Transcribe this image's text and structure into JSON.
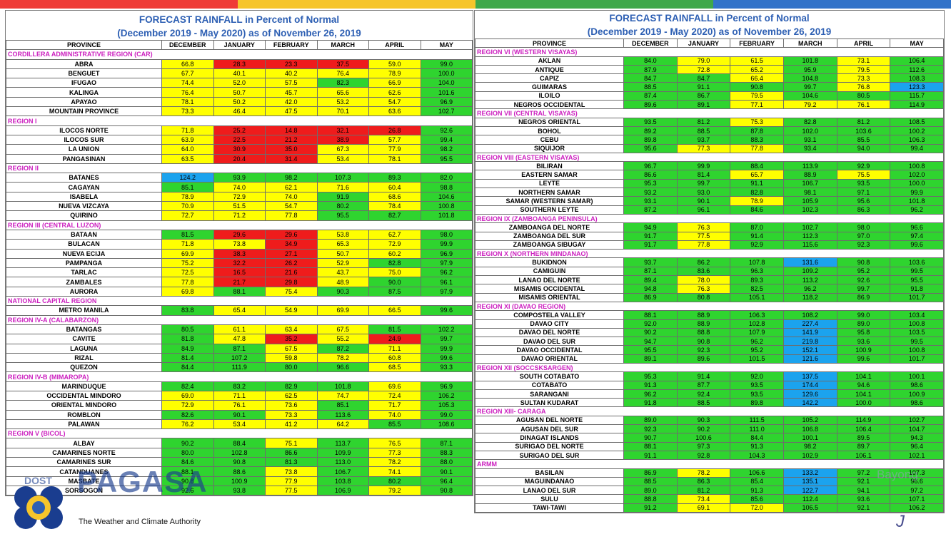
{
  "stripes": [
    "#ef3b36",
    "#f6c52b",
    "#3fa84a",
    "#3273c9"
  ],
  "title_line1": "FORECAST RAINFALL  in Percent of Normal",
  "title_line2": "(December 2019 - May 2020) as of November 26, 2019",
  "headers": [
    "PROVINCE",
    "DECEMBER",
    "JANUARY",
    "FEBRUARY",
    "MARCH",
    "APRIL",
    "MAY"
  ],
  "logo": {
    "dost": "DOST",
    "brand": "PAGASA",
    "tagline": "The Weather and Climate Authority",
    "partial": "Bayong"
  },
  "legend_colors": {
    "g": "#2fd42f",
    "y": "#ffff00",
    "r": "#ef1c1c",
    "b": "#1ba3ee"
  },
  "left_rows": [
    {
      "region": "CORDILLERA ADMINISTRATIVE REGION (CAR)"
    },
    {
      "name": "ABRA",
      "v": [
        "66.8",
        "28.3",
        "23.3",
        "37.5",
        "59.0",
        "99.0"
      ],
      "c": "yrrryg"
    },
    {
      "name": "BENGUET",
      "v": [
        "67.7",
        "40.1",
        "40.2",
        "76.4",
        "78.9",
        "100.0"
      ],
      "c": "yyyyyg"
    },
    {
      "name": "IFUGAO",
      "v": [
        "74.4",
        "52.0",
        "57.5",
        "82.3",
        "66.9",
        "104.0"
      ],
      "c": "yyygyg"
    },
    {
      "name": "KALINGA",
      "v": [
        "76.4",
        "50.7",
        "45.7",
        "65.6",
        "62.6",
        "101.6"
      ],
      "c": "yyyyyg"
    },
    {
      "name": "APAYAO",
      "v": [
        "78.1",
        "50.2",
        "42.0",
        "53.2",
        "54.7",
        "96.9"
      ],
      "c": "yyyyyg"
    },
    {
      "name": "MOUNTAIN PROVINCE",
      "v": [
        "73.3",
        "46.4",
        "47.5",
        "70.1",
        "63.6",
        "102.7"
      ],
      "c": "yyyyyg"
    },
    {
      "region": "REGION I"
    },
    {
      "name": "ILOCOS NORTE",
      "v": [
        "71.8",
        "25.2",
        "14.8",
        "32.1",
        "26.8",
        "92.6"
      ],
      "c": "yrrrrg"
    },
    {
      "name": "ILOCOS SUR",
      "v": [
        "63.9",
        "22.5",
        "21.2",
        "38.9",
        "57.7",
        "99.4"
      ],
      "c": "yrrryg"
    },
    {
      "name": "LA UNION",
      "v": [
        "64.0",
        "30.9",
        "35.0",
        "67.3",
        "77.9",
        "98.2"
      ],
      "c": "yrryyg"
    },
    {
      "name": "PANGASINAN",
      "v": [
        "63.5",
        "20.4",
        "31.4",
        "53.4",
        "78.1",
        "95.5"
      ],
      "c": "yrryyg"
    },
    {
      "region": "REGION II"
    },
    {
      "name": "BATANES",
      "v": [
        "124.2",
        "93.9",
        "98.2",
        "107.3",
        "89.3",
        "82.0"
      ],
      "c": "bggggg"
    },
    {
      "name": "CAGAYAN",
      "v": [
        "85.1",
        "74.0",
        "62.1",
        "71.6",
        "60.4",
        "98.8"
      ],
      "c": "gyyyyg"
    },
    {
      "name": "ISABELA",
      "v": [
        "78.9",
        "72.9",
        "74.0",
        "91.9",
        "68.6",
        "104.6"
      ],
      "c": "yyygyg"
    },
    {
      "name": "NUEVA VIZCAYA",
      "v": [
        "70.9",
        "51.5",
        "54.7",
        "80.2",
        "78.4",
        "100.8"
      ],
      "c": "yyygyg"
    },
    {
      "name": "QUIRINO",
      "v": [
        "72.7",
        "71.2",
        "77.8",
        "95.5",
        "82.7",
        "101.8"
      ],
      "c": "yyyggg"
    },
    {
      "region": "REGION III (CENTRAL LUZON)"
    },
    {
      "name": "BATAAN",
      "v": [
        "81.5",
        "29.6",
        "29.6",
        "53.8",
        "62.7",
        "98.0"
      ],
      "c": "grryyg"
    },
    {
      "name": "BULACAN",
      "v": [
        "71.8",
        "73.8",
        "34.9",
        "65.3",
        "72.9",
        "99.9"
      ],
      "c": "yyryyg"
    },
    {
      "name": "NUEVA ECIJA",
      "v": [
        "69.9",
        "38.3",
        "27.1",
        "50.7",
        "60.2",
        "96.9"
      ],
      "c": "yrryyg"
    },
    {
      "name": "PAMPANGA",
      "v": [
        "75.2",
        "32.2",
        "26.2",
        "52.9",
        "82.8",
        "97.9"
      ],
      "c": "yrrygg"
    },
    {
      "name": "TARLAC",
      "v": [
        "72.5",
        "16.5",
        "21.6",
        "43.7",
        "75.0",
        "96.2"
      ],
      "c": "yrryyg"
    },
    {
      "name": "ZAMBALES",
      "v": [
        "77.8",
        "21.7",
        "29.8",
        "48.9",
        "90.0",
        "96.1"
      ],
      "c": "yrrygg"
    },
    {
      "name": "AURORA",
      "v": [
        "69.8",
        "88.1",
        "75.4",
        "90.3",
        "87.5",
        "97.9"
      ],
      "c": "ygyggg"
    },
    {
      "region": "NATIONAL CAPITAL REGION"
    },
    {
      "name": "METRO MANILA",
      "v": [
        "83.8",
        "65.4",
        "54.9",
        "69.9",
        "66.5",
        "99.6"
      ],
      "c": "gyyyyg"
    },
    {
      "region": "REGION IV-A  (CALABARZON)"
    },
    {
      "name": "BATANGAS",
      "v": [
        "80.5",
        "61.1",
        "63.4",
        "67.5",
        "81.5",
        "102.2"
      ],
      "c": "gyyygg"
    },
    {
      "name": "CAVITE",
      "v": [
        "81.8",
        "47.8",
        "35.2",
        "55.2",
        "24.9",
        "99.7"
      ],
      "c": "gyryrg"
    },
    {
      "name": "LAGUNA",
      "v": [
        "84.9",
        "87.1",
        "67.5",
        "87.2",
        "71.1",
        "99.9"
      ],
      "c": "ggygyg"
    },
    {
      "name": "RIZAL",
      "v": [
        "81.4",
        "107.2",
        "59.8",
        "78.2",
        "60.8",
        "99.6"
      ],
      "c": "ggyyyg"
    },
    {
      "name": "QUEZON",
      "v": [
        "84.4",
        "111.9",
        "80.0",
        "96.6",
        "68.5",
        "93.3"
      ],
      "c": "gggg yg"
    },
    {
      "region": "REGION IV-B  (MIMAROPA)"
    },
    {
      "name": "MARINDUQUE",
      "v": [
        "82.4",
        "83.2",
        "82.9",
        "101.8",
        "69.6",
        "96.9"
      ],
      "c": "ggggyg"
    },
    {
      "name": "OCCIDENTAL MINDORO",
      "v": [
        "69.0",
        "71.1",
        "62.5",
        "74.7",
        "72.4",
        "106.2"
      ],
      "c": "yyyyyg"
    },
    {
      "name": "ORIENTAL MINDORO",
      "v": [
        "72.9",
        "76.1",
        "73.6",
        "85.1",
        "71.7",
        "105.3"
      ],
      "c": "yyygyg"
    },
    {
      "name": "ROMBLON",
      "v": [
        "82.6",
        "90.1",
        "73.3",
        "113.6",
        "74.0",
        "99.0"
      ],
      "c": "ggygyg"
    },
    {
      "name": "PALAWAN",
      "v": [
        "76.2",
        "53.4",
        "41.2",
        "64.2",
        "85.5",
        "108.6"
      ],
      "c": "yyyygg"
    },
    {
      "region": "REGION V (BICOL)"
    },
    {
      "name": "ALBAY",
      "v": [
        "90.2",
        "88.4",
        "75.1",
        "113.7",
        "76.5",
        "87.1"
      ],
      "c": "ggygyg"
    },
    {
      "name": "CAMARINES NORTE",
      "v": [
        "80.0",
        "102.8",
        "86.6",
        "109.9",
        "77.3",
        "88.3"
      ],
      "c": "ggggyg"
    },
    {
      "name": "CAMARINES SUR",
      "v": [
        "84.6",
        "90.8",
        "81.3",
        "113.0",
        "78.2",
        "88.0"
      ],
      "c": "ggggyg"
    },
    {
      "name": "CATANDUANES",
      "v": [
        "88.1",
        "88.6",
        "73.8",
        "106.7",
        "74.1",
        "90.1"
      ],
      "c": "ggygyg"
    },
    {
      "name": "MASBATE",
      "v": [
        "90.8",
        "100.9",
        "77.9",
        "103.8",
        "80.2",
        "96.4"
      ],
      "c": "ggyggg"
    },
    {
      "name": "SORSOGON",
      "v": [
        "92.6",
        "93.8",
        "77.5",
        "106.9",
        "79.2",
        "90.8"
      ],
      "c": "ggygyg"
    }
  ],
  "right_rows": [
    {
      "region": "REGION VI (WESTERN VISAYAS)"
    },
    {
      "name": "AKLAN",
      "v": [
        "84.0",
        "79.0",
        "61.5",
        "101.8",
        "73.1",
        "106.4"
      ],
      "c": "gyygyg"
    },
    {
      "name": "ANTIQUE",
      "v": [
        "87.9",
        "72.8",
        "65.2",
        "95.9",
        "79.5",
        "112.6"
      ],
      "c": "gyygyg"
    },
    {
      "name": "CAPIZ",
      "v": [
        "84.7",
        "84.7",
        "66.4",
        "104.8",
        "73.3",
        "108.3"
      ],
      "c": "ggygyg"
    },
    {
      "name": "GUIMARAS",
      "v": [
        "88.5",
        "91.1",
        "90.8",
        "99.7",
        "76.8",
        "123.3"
      ],
      "c": "gggg yb"
    },
    {
      "name": "ILOILO",
      "v": [
        "87.4",
        "86.7",
        "79.5",
        "104.6",
        "80.5",
        "115.7"
      ],
      "c": "ggyggg"
    },
    {
      "name": "NEGROS OCCIDENTAL",
      "v": [
        "89.6",
        "89.1",
        "77.1",
        "79.2",
        "76.1",
        "114.9"
      ],
      "c": "ggyyyg"
    },
    {
      "region": "REGION VII (CENTRAL VISAYAS)"
    },
    {
      "name": "NEGROS ORIENTAL",
      "v": [
        "93.5",
        "81.2",
        "75.3",
        "82.8",
        "81.2",
        "108.5"
      ],
      "c": "ggyggg"
    },
    {
      "name": "BOHOL",
      "v": [
        "89.2",
        "88.5",
        "87.8",
        "102.0",
        "103.6",
        "100.2"
      ],
      "c": "gggggg"
    },
    {
      "name": "CEBU",
      "v": [
        "89.8",
        "93.7",
        "88.3",
        "93.1",
        "85.5",
        "106.3"
      ],
      "c": "gggggg"
    },
    {
      "name": "SIQUIJOR",
      "v": [
        "95.6",
        "77.3",
        "77.8",
        "93.4",
        "94.0",
        "99.4"
      ],
      "c": "gyyggg"
    },
    {
      "region": "REGION VIII (EASTERN  VISAYAS)"
    },
    {
      "name": "BILIRAN",
      "v": [
        "96.7",
        "99.9",
        "88.4",
        "113.9",
        "92.9",
        "100.8"
      ],
      "c": "gggggg"
    },
    {
      "name": "EASTERN SAMAR",
      "v": [
        "86.6",
        "81.4",
        "65.7",
        "88.9",
        "75.5",
        "102.0"
      ],
      "c": "ggygyg"
    },
    {
      "name": "LEYTE",
      "v": [
        "95.3",
        "99.7",
        "91.1",
        "106.7",
        "93.5",
        "100.0"
      ],
      "c": "gggggg"
    },
    {
      "name": "NORTHERN SAMAR",
      "v": [
        "93.2",
        "93.0",
        "82.8",
        "98.1",
        "97.1",
        "99.9"
      ],
      "c": "gggggg"
    },
    {
      "name": "SAMAR (WESTERN SAMAR)",
      "v": [
        "93.1",
        "90.1",
        "78.9",
        "105.9",
        "95.6",
        "101.8"
      ],
      "c": "ggyggg"
    },
    {
      "name": "SOUTHERN LEYTE",
      "v": [
        "87.2",
        "96.1",
        "84.6",
        "102.3",
        "86.3",
        "96.2"
      ],
      "c": "gggggg"
    },
    {
      "region": "REGION IX (ZAMBOANGA PENINSULA)"
    },
    {
      "name": "ZAMBOANGA DEL NORTE",
      "v": [
        "94.9",
        "76.3",
        "87.0",
        "102.7",
        "98.0",
        "96.6"
      ],
      "c": "gyg ggg"
    },
    {
      "name": "ZAMBOANGA DEL SUR",
      "v": [
        "91.7",
        "77.5",
        "91.4",
        "112.3",
        "97.0",
        "97.4"
      ],
      "c": "gyg ggg"
    },
    {
      "name": "ZAMBOANGA SIBUGAY",
      "v": [
        "91.7",
        "77.8",
        "92.9",
        "115.6",
        "92.3",
        "99.6"
      ],
      "c": "gyg ggg"
    },
    {
      "region": "REGION X (NORTHERN MINDANAO)"
    },
    {
      "name": "BUKIDNON",
      "v": [
        "93.7",
        "86.2",
        "107.8",
        "131.6",
        "90.8",
        "103.6"
      ],
      "c": "gggbgg"
    },
    {
      "name": "CAMIGUIN",
      "v": [
        "87.1",
        "83.6",
        "96.3",
        "109.2",
        "95.2",
        "99.5"
      ],
      "c": "gggggg"
    },
    {
      "name": "LANAO DEL NORTE",
      "v": [
        "89.4",
        "78.0",
        "89.3",
        "113.2",
        "92.6",
        "95.5"
      ],
      "c": "gygggg"
    },
    {
      "name": "MISAMIS OCCIDENTAL",
      "v": [
        "94.8",
        "76.3",
        "82.5",
        "96.2",
        "99.7",
        "91.8"
      ],
      "c": "gygggg"
    },
    {
      "name": "MISAMIS ORIENTAL",
      "v": [
        "86.9",
        "80.8",
        "105.1",
        "118.2",
        "86.9",
        "101.7"
      ],
      "c": "gggggg"
    },
    {
      "region": "REGION XI (DAVAO REGION)"
    },
    {
      "name": "COMPOSTELA VALLEY",
      "v": [
        "88.1",
        "88.9",
        "106.3",
        "108.2",
        "99.0",
        "103.4"
      ],
      "c": "gggggg"
    },
    {
      "name": "DAVAO CITY",
      "v": [
        "92.0",
        "88.9",
        "102.8",
        "227.4",
        "89.0",
        "100.8"
      ],
      "c": "gggbgg"
    },
    {
      "name": "DAVAO DEL NORTE",
      "v": [
        "90.2",
        "88.8",
        "107.9",
        "141.9",
        "95.8",
        "103.5"
      ],
      "c": "gggbgg"
    },
    {
      "name": "DAVAO DEL SUR",
      "v": [
        "94.7",
        "90.8",
        "96.2",
        "219.8",
        "93.6",
        "99.5"
      ],
      "c": "gggbgg"
    },
    {
      "name": "DAVAO OCCIDENTAL",
      "v": [
        "95.5",
        "92.3",
        "95.2",
        "152.1",
        "100.9",
        "100.8"
      ],
      "c": "gggbgg"
    },
    {
      "name": "DAVAO ORIENTAL",
      "v": [
        "89.1",
        "89.6",
        "101.5",
        "121.6",
        "99.6",
        "101.7"
      ],
      "c": "gggbgg"
    },
    {
      "region": "REGION XII (SOCCSKSARGEN)"
    },
    {
      "name": "SOUTH COTABATO",
      "v": [
        "95.3",
        "91.4",
        "92.0",
        "137.5",
        "104.1",
        "100.1"
      ],
      "c": "gggbgg"
    },
    {
      "name": "COTABATO",
      "v": [
        "91.3",
        "87.7",
        "93.5",
        "174.4",
        "94.6",
        "98.6"
      ],
      "c": "gggbgg"
    },
    {
      "name": "SARANGANI",
      "v": [
        "96.2",
        "92.4",
        "93.5",
        "129.6",
        "104.1",
        "100.9"
      ],
      "c": "gggbgg"
    },
    {
      "name": "SULTAN KUDARAT",
      "v": [
        "91.8",
        "88.5",
        "89.8",
        "142.2",
        "100.0",
        "98.6"
      ],
      "c": "gggbgg"
    },
    {
      "region": "REGION XIII- CARAGA"
    },
    {
      "name": "AGUSAN DEL NORTE",
      "v": [
        "89.0",
        "90.3",
        "111.5",
        "105.2",
        "114.9",
        "102.7"
      ],
      "c": "gggggg"
    },
    {
      "name": "AGUSAN DEL SUR",
      "v": [
        "92.3",
        "90.2",
        "111.0",
        "106.8",
        "106.4",
        "104.7"
      ],
      "c": "gggggg"
    },
    {
      "name": "DINAGAT ISLANDS",
      "v": [
        "90.7",
        "100.6",
        "84.4",
        "100.1",
        "89.5",
        "94.3"
      ],
      "c": "gggggg"
    },
    {
      "name": "SURIGAO DEL NORTE",
      "v": [
        "88.1",
        "97.3",
        "91.3",
        "98.2",
        "89.7",
        "96.4"
      ],
      "c": "gggggg"
    },
    {
      "name": "SURIGAO DEL SUR",
      "v": [
        "91.1",
        "92.8",
        "104.3",
        "102.9",
        "106.1",
        "102.1"
      ],
      "c": "gggggg"
    },
    {
      "region": "ARMM"
    },
    {
      "name": "BASILAN",
      "v": [
        "86.9",
        "78.2",
        "106.6",
        "133.2",
        "97.2",
        "107.3"
      ],
      "c": "gygbgg"
    },
    {
      "name": "MAGUINDANAO",
      "v": [
        "88.5",
        "86.3",
        "85.4",
        "135.1",
        "92.1",
        "96.6"
      ],
      "c": "gggbgg"
    },
    {
      "name": "LANAO DEL SUR",
      "v": [
        "89.0",
        "81.2",
        "91.3",
        "122.7",
        "94.1",
        "97.2"
      ],
      "c": "gggbgg"
    },
    {
      "name": "SULU",
      "v": [
        "88.8",
        "73.4",
        "85.6",
        "112.4",
        "93.6",
        "107.1"
      ],
      "c": "gygggg"
    },
    {
      "name": "TAWI-TAWI",
      "v": [
        "91.2",
        "69.1",
        "72.0",
        "106.5",
        "92.1",
        "106.2"
      ],
      "c": "gyyggg"
    }
  ]
}
